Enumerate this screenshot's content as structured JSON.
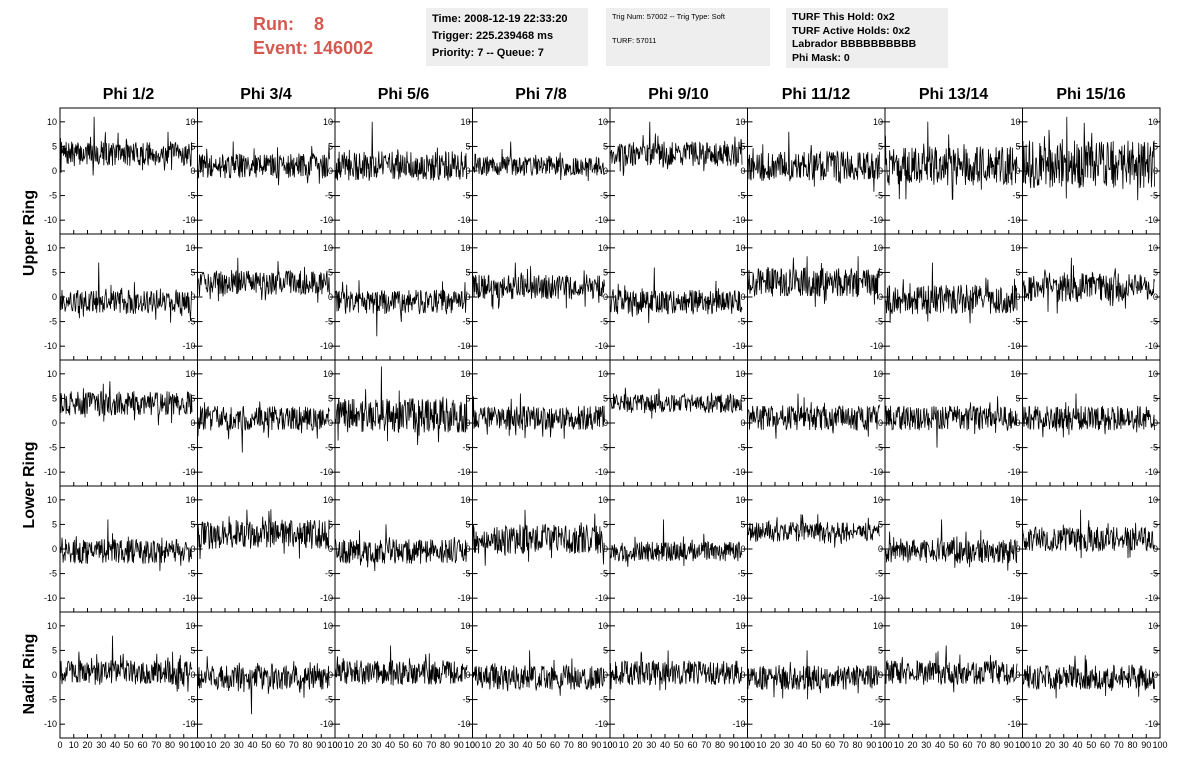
{
  "header": {
    "run_label": "Run:",
    "run_value": "8",
    "event_label": "Event:",
    "event_value": "146002",
    "colors": {
      "run_text": "#d45a4f",
      "panel_bg": "#eeeeee"
    }
  },
  "info_panels": [
    {
      "lines": [
        "Time: 2008-12-19 22:33:20",
        "Trigger: 225.239468 ms",
        "Priority: 7 -- Queue: 7"
      ]
    },
    {
      "lines": [
        "Trig Num: 57002 -- Trig Type: Soft",
        "",
        "TURF: 57011"
      ]
    },
    {
      "lines": [
        "TURF This Hold: 0x2",
        "TURF Active Holds: 0x2",
        "Labrador BBBBBBBBBB",
        "Phi Mask: 0"
      ]
    }
  ],
  "chart_data": {
    "type": "line",
    "columns": [
      "Phi 1/2",
      "Phi 3/4",
      "Phi 5/6",
      "Phi 7/8",
      "Phi 9/10",
      "Phi 11/12",
      "Phi 13/14",
      "Phi 15/16"
    ],
    "ring_labels": [
      "Upper Ring",
      "Lower Ring",
      "Nadir Ring"
    ],
    "xlim": [
      0,
      100
    ],
    "ylim": [
      -12,
      12
    ],
    "x_ticks": [
      "0",
      "10",
      "20",
      "30",
      "40",
      "50",
      "60",
      "70",
      "80",
      "90",
      "100"
    ],
    "y_ticks": [
      "10",
      "5",
      "0",
      "-5",
      "-10"
    ],
    "grid": false,
    "trace_color": "#000000",
    "rows": [
      {
        "panels": [
          {
            "baseline": 3.5,
            "spread": 2.5,
            "spike": 11
          },
          {
            "baseline": 1.0,
            "spread": 2.5,
            "spike": 6
          },
          {
            "baseline": 1.0,
            "spread": 3.0,
            "spike": 10
          },
          {
            "baseline": 1.0,
            "spread": 2.0,
            "spike": 6
          },
          {
            "baseline": 3.5,
            "spread": 2.5,
            "spike": 10
          },
          {
            "baseline": 1.0,
            "spread": 3.0,
            "spike": 8
          },
          {
            "baseline": 1.0,
            "spread": 4.0,
            "spike": 10
          },
          {
            "baseline": 1.5,
            "spread": 5.0,
            "spike": 11
          }
        ]
      },
      {
        "panels": [
          {
            "baseline": -1.0,
            "spread": 2.5,
            "spike": 7
          },
          {
            "baseline": 3.0,
            "spread": 2.5,
            "spike": 8
          },
          {
            "baseline": -1.0,
            "spread": 2.5,
            "spike": -8
          },
          {
            "baseline": 2.0,
            "spread": 2.5,
            "spike": 7
          },
          {
            "baseline": -1.0,
            "spread": 2.5,
            "spike": 6
          },
          {
            "baseline": 3.0,
            "spread": 3.0,
            "spike": 8
          },
          {
            "baseline": -0.5,
            "spread": 3.0,
            "spike": 7
          },
          {
            "baseline": 2.0,
            "spread": 3.0,
            "spike": 8
          }
        ]
      },
      {
        "panels": [
          {
            "baseline": 4.0,
            "spread": 2.5,
            "spike": 8
          },
          {
            "baseline": 1.0,
            "spread": 2.5,
            "spike": -6
          },
          {
            "baseline": 1.5,
            "spread": 3.5,
            "spike": 12
          },
          {
            "baseline": 1.0,
            "spread": 2.5,
            "spike": 6
          },
          {
            "baseline": 4.0,
            "spread": 2.0,
            "spike": 7
          },
          {
            "baseline": 1.0,
            "spread": 2.5,
            "spike": 6
          },
          {
            "baseline": 1.0,
            "spread": 2.5,
            "spike": -5
          },
          {
            "baseline": 1.0,
            "spread": 2.5,
            "spike": 6
          }
        ]
      },
      {
        "panels": [
          {
            "baseline": -0.5,
            "spread": 2.5,
            "spike": 6
          },
          {
            "baseline": 3.0,
            "spread": 3.0,
            "spike": 8
          },
          {
            "baseline": -0.5,
            "spread": 2.5,
            "spike": 5
          },
          {
            "baseline": 2.0,
            "spread": 3.0,
            "spike": 8
          },
          {
            "baseline": -0.5,
            "spread": 2.0,
            "spike": 6
          },
          {
            "baseline": 3.5,
            "spread": 2.0,
            "spike": 7
          },
          {
            "baseline": -0.5,
            "spread": 2.5,
            "spike": 6
          },
          {
            "baseline": 2.0,
            "spread": 2.5,
            "spike": 8
          }
        ]
      },
      {
        "panels": [
          {
            "baseline": 0.5,
            "spread": 2.5,
            "spike": 8
          },
          {
            "baseline": -0.5,
            "spread": 2.5,
            "spike": -8
          },
          {
            "baseline": 0.5,
            "spread": 2.5,
            "spike": 6
          },
          {
            "baseline": -0.5,
            "spread": 2.5,
            "spike": 5
          },
          {
            "baseline": 0.5,
            "spread": 2.5,
            "spike": 5
          },
          {
            "baseline": -0.5,
            "spread": 2.5,
            "spike": 5
          },
          {
            "baseline": 0.5,
            "spread": 2.5,
            "spike": 6
          },
          {
            "baseline": -0.5,
            "spread": 2.5,
            "spike": 4
          }
        ]
      }
    ]
  }
}
